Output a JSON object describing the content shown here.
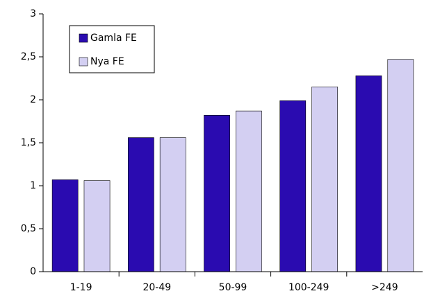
{
  "chart_data": {
    "type": "bar",
    "categories": [
      "1-19",
      "20-49",
      "50-99",
      "100-249",
      ">249"
    ],
    "series": [
      {
        "name": "Gamla FE",
        "color": "#2a0bb0",
        "values": [
          1.07,
          1.56,
          1.82,
          1.99,
          2.28
        ]
      },
      {
        "name": "Nya FE",
        "color": "#d3cff2",
        "values": [
          1.06,
          1.56,
          1.87,
          2.15,
          2.47
        ]
      }
    ],
    "ylim": [
      0,
      3
    ],
    "yticks": [
      0,
      {
        "value": 0.5,
        "label": "0,5"
      },
      1,
      {
        "value": 1.5,
        "label": "1,5"
      },
      2,
      {
        "value": 2.5,
        "label": "2,5"
      },
      3
    ],
    "grid": false,
    "legend": "top-left"
  }
}
